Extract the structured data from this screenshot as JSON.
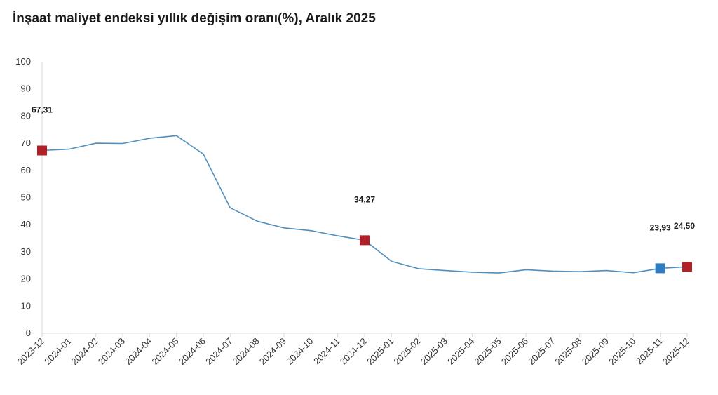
{
  "chart_data": {
    "type": "line",
    "title": "İnşaat maliyet endeksi yıllık değişim oranı(%), Aralık 2025",
    "xlabel": "",
    "ylabel": "",
    "ylim": [
      0,
      100
    ],
    "yticks": [
      0,
      10,
      20,
      30,
      40,
      50,
      60,
      70,
      80,
      90,
      100
    ],
    "grid": false,
    "categories": [
      "2023-12",
      "2024-01",
      "2024-02",
      "2024-03",
      "2024-04",
      "2024-05",
      "2024-06",
      "2024-07",
      "2024-08",
      "2024-09",
      "2024-10",
      "2024-11",
      "2024-12",
      "2025-01",
      "2025-02",
      "2025-03",
      "2025-04",
      "2025-05",
      "2025-06",
      "2025-07",
      "2025-08",
      "2025-09",
      "2025-10",
      "2025-11",
      "2025-12"
    ],
    "series": [
      {
        "values": [
          67.31,
          67.8,
          70.0,
          69.9,
          71.8,
          72.8,
          66.0,
          46.2,
          41.3,
          38.8,
          37.8,
          35.9,
          34.27,
          26.5,
          23.8,
          23.1,
          22.5,
          22.2,
          23.4,
          22.9,
          22.7,
          23.1,
          22.3,
          23.93,
          24.5
        ],
        "color": "#4f8fbf"
      }
    ],
    "highlights": [
      {
        "index": 0,
        "label": "67,31",
        "color": "#b22027"
      },
      {
        "index": 12,
        "label": "34,27",
        "color": "#b22027"
      },
      {
        "index": 23,
        "label": "23,93",
        "color": "#2e7bbf"
      },
      {
        "index": 24,
        "label": "24,50",
        "color": "#b22027"
      }
    ]
  }
}
